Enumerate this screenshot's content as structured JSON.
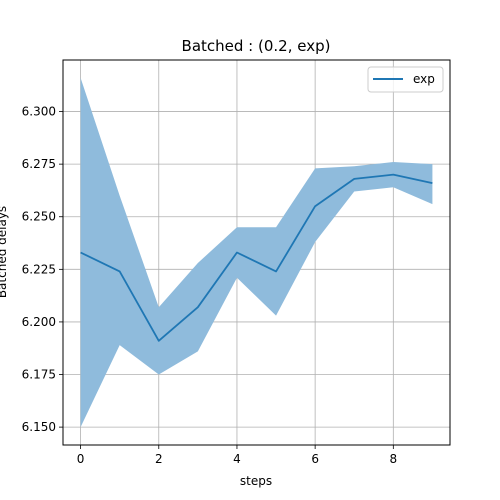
{
  "chart_data": {
    "type": "line",
    "title": "Batched : (0.2, exp)",
    "xlabel": "steps",
    "ylabel": "Batched delays",
    "xlim": [
      -0.45,
      9.45
    ],
    "ylim": [
      6.1415,
      6.3245
    ],
    "xticks": [
      0,
      2,
      4,
      6,
      8
    ],
    "xtick_labels": [
      "0",
      "2",
      "4",
      "6",
      "8"
    ],
    "yticks": [
      6.15,
      6.175,
      6.2,
      6.225,
      6.25,
      6.275,
      6.3
    ],
    "ytick_labels": [
      "6.150",
      "6.175",
      "6.200",
      "6.225",
      "6.250",
      "6.275",
      "6.300"
    ],
    "grid": true,
    "legend_position": "top-right",
    "series": [
      {
        "name": "exp",
        "color": "#1f77b4",
        "x": [
          0,
          1,
          2,
          3,
          4,
          5,
          6,
          7,
          8,
          9
        ],
        "values": [
          6.233,
          6.224,
          6.191,
          6.207,
          6.233,
          6.224,
          6.255,
          6.268,
          6.27,
          6.266
        ],
        "band_upper": [
          6.316,
          6.26,
          6.207,
          6.228,
          6.245,
          6.245,
          6.273,
          6.274,
          6.276,
          6.275
        ],
        "band_lower": [
          6.15,
          6.189,
          6.175,
          6.186,
          6.221,
          6.203,
          6.238,
          6.262,
          6.264,
          6.256
        ],
        "band_color": "#8fbbdc"
      }
    ]
  }
}
